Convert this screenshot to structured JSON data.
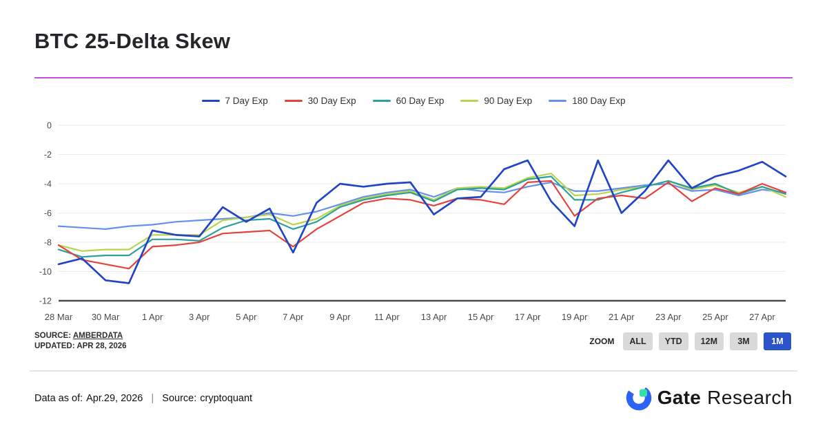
{
  "page": {
    "title": "BTC 25-Delta Skew",
    "accent_line_color": "#c44fdd"
  },
  "chart_data": {
    "type": "line",
    "title": "BTC 25-Delta Skew",
    "grid": true,
    "legend_position": "top",
    "ylim": [
      -12,
      0
    ],
    "y_ticks": [
      0,
      -2,
      -4,
      -6,
      -8,
      -10,
      -12
    ],
    "x": [
      "28 Mar",
      "29 Mar",
      "30 Mar",
      "31 Mar",
      "1 Apr",
      "2 Apr",
      "3 Apr",
      "4 Apr",
      "5 Apr",
      "6 Apr",
      "7 Apr",
      "8 Apr",
      "9 Apr",
      "10 Apr",
      "11 Apr",
      "12 Apr",
      "13 Apr",
      "14 Apr",
      "15 Apr",
      "16 Apr",
      "17 Apr",
      "18 Apr",
      "19 Apr",
      "20 Apr",
      "21 Apr",
      "22 Apr",
      "23 Apr",
      "24 Apr",
      "25 Apr",
      "26 Apr",
      "27 Apr",
      "28 Apr"
    ],
    "x_tick_labels": [
      "28 Mar",
      "30 Mar",
      "1 Apr",
      "3 Apr",
      "5 Apr",
      "7 Apr",
      "9 Apr",
      "11 Apr",
      "13 Apr",
      "15 Apr",
      "17 Apr",
      "19 Apr",
      "21 Apr",
      "23 Apr",
      "25 Apr",
      "27 Apr"
    ],
    "series": [
      {
        "name": "7 Day Exp",
        "color": "#2145c4",
        "values": [
          -9.5,
          -9.1,
          -10.6,
          -10.8,
          -7.2,
          -7.5,
          -7.6,
          -5.6,
          -6.6,
          -5.7,
          -8.7,
          -5.3,
          -4.0,
          -4.2,
          -4.0,
          -3.9,
          -6.1,
          -5.0,
          -4.9,
          -3.0,
          -2.4,
          -5.2,
          -6.9,
          -2.4,
          -6.0,
          -4.5,
          -2.4,
          -4.3,
          -3.5,
          -3.1,
          -2.5,
          -3.5
        ]
      },
      {
        "name": "30 Day Exp",
        "color": "#e6413b",
        "values": [
          -8.2,
          -9.2,
          -9.5,
          -9.8,
          -8.3,
          -8.2,
          -8.0,
          -7.4,
          -7.3,
          -7.2,
          -8.3,
          -7.1,
          -6.2,
          -5.3,
          -5.0,
          -5.1,
          -5.5,
          -5.0,
          -5.1,
          -5.4,
          -3.9,
          -3.8,
          -6.2,
          -5.0,
          -4.8,
          -5.0,
          -3.9,
          -5.2,
          -4.3,
          -4.7,
          -4.0,
          -4.6
        ]
      },
      {
        "name": "60 Day Exp",
        "color": "#2ba09d",
        "values": [
          -8.5,
          -9.0,
          -8.9,
          -8.9,
          -7.8,
          -7.8,
          -7.9,
          -7.0,
          -6.5,
          -6.4,
          -7.1,
          -6.6,
          -5.6,
          -5.1,
          -4.8,
          -4.6,
          -5.2,
          -4.4,
          -4.3,
          -4.4,
          -3.7,
          -3.5,
          -5.1,
          -5.1,
          -4.6,
          -4.2,
          -3.8,
          -4.3,
          -4.0,
          -4.7,
          -4.2,
          -4.7
        ]
      },
      {
        "name": "90 Day Exp",
        "color": "#b9d44d",
        "values": [
          -8.2,
          -8.6,
          -8.5,
          -8.5,
          -7.5,
          -7.5,
          -7.5,
          -6.5,
          -6.3,
          -6.1,
          -6.8,
          -6.4,
          -5.5,
          -5.0,
          -4.7,
          -4.5,
          -5.1,
          -4.3,
          -4.2,
          -4.3,
          -3.6,
          -3.3,
          -4.8,
          -4.7,
          -4.4,
          -4.2,
          -3.8,
          -4.4,
          -4.1,
          -4.6,
          -4.2,
          -4.9
        ]
      },
      {
        "name": "180 Day Exp",
        "color": "#6590ec",
        "values": [
          -6.9,
          -7.0,
          -7.1,
          -6.9,
          -6.8,
          -6.6,
          -6.5,
          -6.4,
          -6.3,
          -6.0,
          -6.2,
          -5.9,
          -5.4,
          -4.9,
          -4.6,
          -4.4,
          -4.9,
          -4.3,
          -4.5,
          -4.6,
          -4.2,
          -3.9,
          -4.5,
          -4.5,
          -4.3,
          -4.1,
          -4.0,
          -4.5,
          -4.4,
          -4.8,
          -4.4,
          -4.6
        ]
      }
    ]
  },
  "chart_footer": {
    "source_label": "SOURCE:",
    "source_value": "AMBERDATA",
    "updated": "UPDATED: APR 28, 2026",
    "zoom": {
      "label": "ZOOM",
      "active_color": "#2d53cb",
      "buttons": [
        {
          "label": "ALL",
          "active": false
        },
        {
          "label": "YTD",
          "active": false
        },
        {
          "label": "12M",
          "active": false
        },
        {
          "label": "3M",
          "active": false
        },
        {
          "label": "1M",
          "active": true
        }
      ]
    }
  },
  "footer": {
    "data_as_of_label": "Data as of:",
    "data_as_of_value": "Apr.29, 2026",
    "separator": "|",
    "source_label": "Source:",
    "source_value": "cryptoquant",
    "brand": {
      "name_bold": "Gate",
      "name_regular": "Research",
      "logo_blue": "#2b63f6",
      "logo_green": "#36e0a7"
    }
  }
}
